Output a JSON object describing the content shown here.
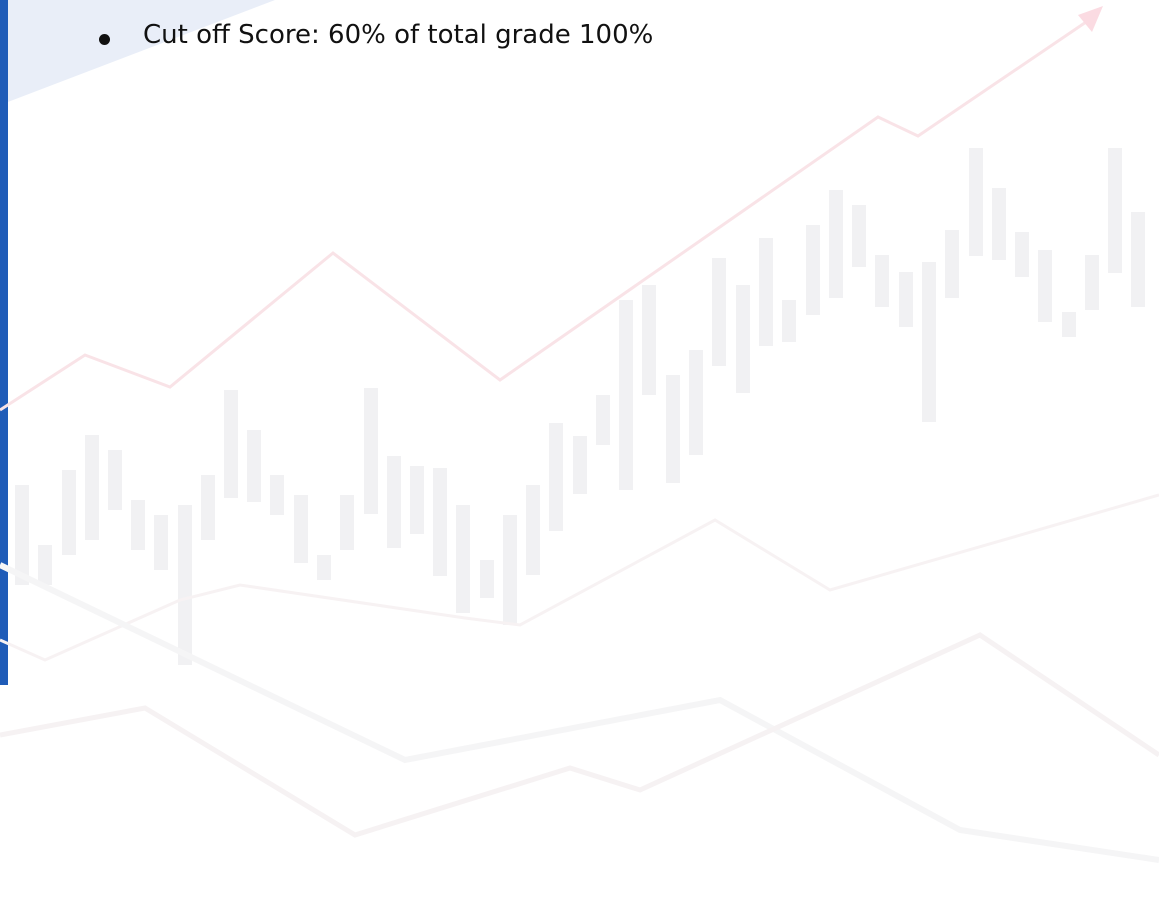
{
  "bullets": [
    "Cut off Score: 60% of total grade 100%"
  ]
}
